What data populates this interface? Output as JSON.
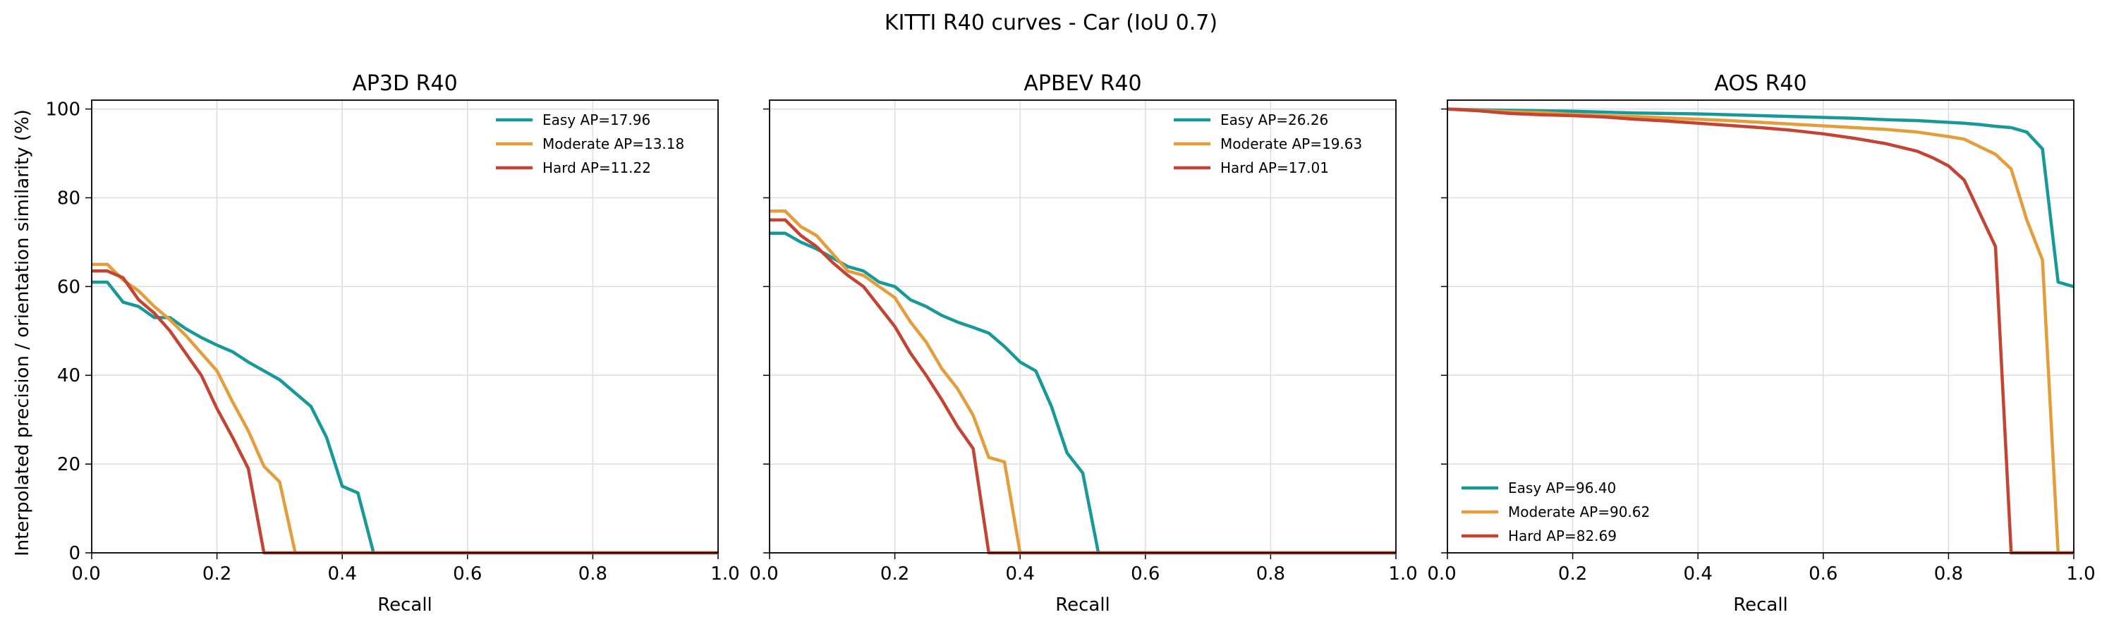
{
  "figure": {
    "suptitle": "KITTI R40 curves - Car (IoU 0.7)",
    "ylabel": "Interpolated precision / orientation similarity (%)"
  },
  "chart_data": [
    {
      "type": "line",
      "title": "AP3D R40",
      "xlabel": "Recall",
      "ylabel": "Interpolated precision / orientation similarity (%)",
      "xlim": [
        0,
        1
      ],
      "ylim": [
        0,
        102
      ],
      "xticks": [
        "0.0",
        "0.2",
        "0.4",
        "0.6",
        "0.8",
        "1.0"
      ],
      "yticks": [
        "0",
        "20",
        "40",
        "60",
        "80",
        "100"
      ],
      "grid": true,
      "legend_position": "top-right",
      "series": [
        {
          "name": "Easy  AP=17.96",
          "color": "#17999a",
          "x": [
            0,
            0.025,
            0.05,
            0.075,
            0.1,
            0.125,
            0.15,
            0.175,
            0.2,
            0.225,
            0.25,
            0.275,
            0.3,
            0.325,
            0.35,
            0.375,
            0.4,
            0.425,
            0.45,
            0.475,
            1.0
          ],
          "y": [
            61,
            61,
            56.5,
            55.5,
            53,
            53,
            50.5,
            48.5,
            46.8,
            45.3,
            43,
            41,
            39,
            36,
            33,
            26,
            15,
            13.5,
            0,
            0,
            0
          ]
        },
        {
          "name": "Moderate  AP=13.18",
          "color": "#e59c3a",
          "x": [
            0,
            0.025,
            0.05,
            0.075,
            0.1,
            0.125,
            0.15,
            0.175,
            0.2,
            0.225,
            0.25,
            0.275,
            0.3,
            0.325,
            0.35,
            1.0
          ],
          "y": [
            65,
            65,
            61.5,
            59,
            55.5,
            52.5,
            49,
            45,
            41,
            34,
            27.5,
            19.5,
            16,
            0,
            0,
            0
          ]
        },
        {
          "name": "Hard  AP=11.22",
          "color": "#c44434",
          "x": [
            0,
            0.025,
            0.05,
            0.075,
            0.1,
            0.125,
            0.15,
            0.175,
            0.2,
            0.225,
            0.25,
            0.275,
            0.3,
            1.0
          ],
          "y": [
            63.5,
            63.5,
            62,
            57,
            54,
            50,
            45,
            40,
            32.5,
            26,
            19,
            0,
            0,
            0
          ]
        }
      ]
    },
    {
      "type": "line",
      "title": "APBEV R40",
      "xlabel": "Recall",
      "xlim": [
        0,
        1
      ],
      "ylim": [
        0,
        102
      ],
      "xticks": [
        "0.0",
        "0.2",
        "0.4",
        "0.6",
        "0.8",
        "1.0"
      ],
      "grid": true,
      "legend_position": "top-right",
      "series": [
        {
          "name": "Easy  AP=26.26",
          "color": "#17999a",
          "x": [
            0,
            0.025,
            0.05,
            0.075,
            0.1,
            0.125,
            0.15,
            0.175,
            0.2,
            0.225,
            0.25,
            0.275,
            0.3,
            0.325,
            0.35,
            0.375,
            0.4,
            0.425,
            0.45,
            0.475,
            0.5,
            0.525,
            0.55,
            1.0
          ],
          "y": [
            72,
            72,
            70,
            68.5,
            66.5,
            64.5,
            63.5,
            61,
            60,
            57,
            55.5,
            53.5,
            52,
            50.8,
            49.5,
            46.5,
            43,
            41,
            33,
            22.5,
            18,
            0,
            0,
            0
          ]
        },
        {
          "name": "Moderate  AP=19.63",
          "color": "#e59c3a",
          "x": [
            0,
            0.025,
            0.05,
            0.075,
            0.1,
            0.125,
            0.15,
            0.175,
            0.2,
            0.225,
            0.25,
            0.275,
            0.3,
            0.325,
            0.35,
            0.375,
            0.4,
            0.425,
            1.0
          ],
          "y": [
            77,
            77,
            73.5,
            71.5,
            67.5,
            63.5,
            62.5,
            60,
            57.5,
            52,
            47.5,
            41.5,
            37,
            31,
            21.5,
            20.5,
            0,
            0,
            0
          ]
        },
        {
          "name": "Hard  AP=17.01",
          "color": "#c44434",
          "x": [
            0,
            0.025,
            0.05,
            0.075,
            0.1,
            0.125,
            0.15,
            0.175,
            0.2,
            0.225,
            0.25,
            0.275,
            0.3,
            0.325,
            0.35,
            0.375,
            1.0
          ],
          "y": [
            75,
            75,
            71.5,
            69,
            65.5,
            62.5,
            60,
            55.5,
            51,
            45,
            40,
            34.5,
            28.5,
            23.5,
            0,
            0,
            0
          ]
        }
      ]
    },
    {
      "type": "line",
      "title": "AOS R40",
      "xlabel": "Recall",
      "xlim": [
        0,
        1
      ],
      "ylim": [
        0,
        102
      ],
      "xticks": [
        "0.0",
        "0.2",
        "0.4",
        "0.6",
        "0.8",
        "1.0"
      ],
      "grid": true,
      "legend_position": "bottom-left",
      "series": [
        {
          "name": "Easy  AP=96.40",
          "color": "#17999a",
          "x": [
            0,
            0.05,
            0.1,
            0.15,
            0.2,
            0.25,
            0.3,
            0.35,
            0.4,
            0.45,
            0.5,
            0.55,
            0.6,
            0.65,
            0.7,
            0.75,
            0.8,
            0.825,
            0.85,
            0.875,
            0.9,
            0.925,
            0.95,
            0.975,
            1.0
          ],
          "y": [
            100,
            99.8,
            99.7,
            99.6,
            99.5,
            99.3,
            99.1,
            99.0,
            98.9,
            98.7,
            98.5,
            98.3,
            98.1,
            97.9,
            97.6,
            97.4,
            97.0,
            96.8,
            96.5,
            96.1,
            95.8,
            94.8,
            91,
            61,
            60
          ]
        },
        {
          "name": "Moderate  AP=90.62",
          "color": "#e59c3a",
          "x": [
            0,
            0.05,
            0.1,
            0.15,
            0.2,
            0.25,
            0.3,
            0.35,
            0.4,
            0.45,
            0.5,
            0.55,
            0.6,
            0.65,
            0.7,
            0.75,
            0.8,
            0.825,
            0.85,
            0.875,
            0.9,
            0.925,
            0.95,
            0.975,
            1.0
          ],
          "y": [
            100,
            99.7,
            99.4,
            99.2,
            98.8,
            98.5,
            98.3,
            98.0,
            97.7,
            97.4,
            97.0,
            96.6,
            96.2,
            95.8,
            95.4,
            94.8,
            93.8,
            93.2,
            91.5,
            89.8,
            86.5,
            75,
            66,
            0,
            0
          ]
        },
        {
          "name": "Hard  AP=82.69",
          "color": "#c44434",
          "x": [
            0,
            0.05,
            0.1,
            0.15,
            0.2,
            0.25,
            0.3,
            0.35,
            0.4,
            0.45,
            0.5,
            0.55,
            0.6,
            0.65,
            0.7,
            0.75,
            0.775,
            0.8,
            0.825,
            0.85,
            0.875,
            0.9,
            1.0
          ],
          "y": [
            100,
            99.6,
            99.0,
            98.7,
            98.5,
            98.2,
            97.7,
            97.3,
            96.8,
            96.3,
            95.8,
            95.2,
            94.4,
            93.4,
            92.2,
            90.5,
            89.0,
            87.2,
            84,
            76.5,
            69,
            0,
            0
          ]
        }
      ]
    }
  ]
}
